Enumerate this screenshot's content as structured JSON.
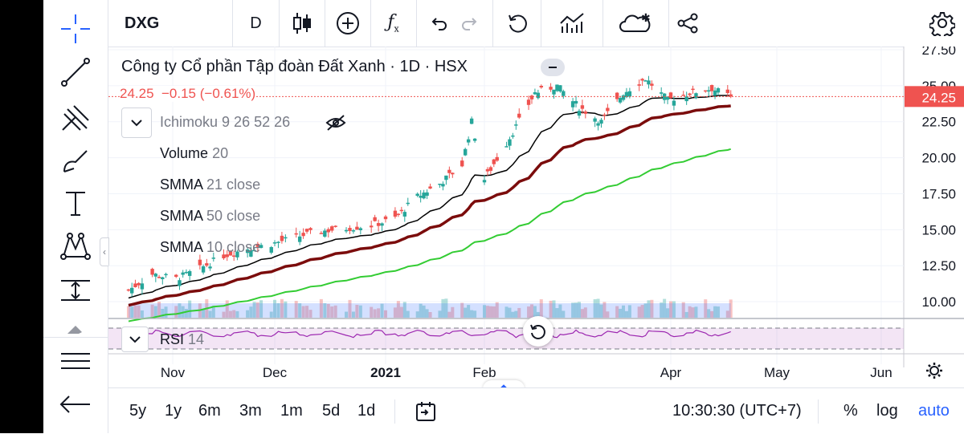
{
  "toolbar": {
    "symbol": "DXG",
    "interval": "D",
    "icons": [
      "candles-icon",
      "add-indicator-icon",
      "fx-icon",
      "undo-icon",
      "redo-icon",
      "replay-icon",
      "compare-icon",
      "alert-cloud-icon",
      "share-icon",
      "settings-icon"
    ]
  },
  "legend": {
    "title": "Công ty Cổ phần Tập đoàn Đất Xanh · 1D · HSX",
    "price": "24.25",
    "change": "−0.15 (−0.61%)",
    "indicators": [
      {
        "name": "Ichimoku",
        "params": "9 26 52 26"
      },
      {
        "name": "Volume",
        "params": "20"
      },
      {
        "name": "SMMA",
        "params": "21 close"
      },
      {
        "name": "SMMA",
        "params": "50 close"
      },
      {
        "name": "SMMA",
        "params": "10 close"
      }
    ],
    "rsi": {
      "name": "RSI",
      "params": "14"
    }
  },
  "time_axis": [
    "Nov",
    "Dec",
    "2021",
    "Feb",
    "Apr",
    "May",
    "Jun"
  ],
  "ranges": [
    "5y",
    "1y",
    "6m",
    "3m",
    "1m",
    "5d",
    "1d"
  ],
  "clock": "10:30:30 (UTC+7)",
  "scale_options": {
    "percent": "%",
    "log": "log",
    "auto": "auto"
  },
  "colors": {
    "up": "#26a69a",
    "down": "#ef5350",
    "smma10": "#000000",
    "smma21": "#7b0c0c",
    "smma50": "#33cc33",
    "price_label": "#ef5350",
    "rsi_line": "#9c27b0",
    "auto": "#2962ff"
  },
  "chart_data": {
    "type": "candlestick",
    "title": "Công ty Cổ phần Tập đoàn Đất Xanh · 1D · HSX",
    "ylim": [
      9,
      27.5
    ],
    "y_ticks": [
      10.0,
      12.5,
      15.0,
      17.5,
      20.0,
      22.5,
      25.0,
      27.5
    ],
    "y_tick_labels": [
      "10.00",
      "12.50",
      "15.00",
      "17.50",
      "20.00",
      "22.50",
      "25.00",
      "27.50"
    ],
    "last_price": 24.25,
    "x_labels": [
      "Nov",
      "Dec",
      "2021",
      "Feb",
      "Apr",
      "May",
      "Jun"
    ],
    "close_anchors": [
      {
        "x": "Oct 19",
        "y": 10.8
      },
      {
        "x": "Oct 26",
        "y": 11.9
      },
      {
        "x": "Nov 2",
        "y": 11.6
      },
      {
        "x": "Nov 9",
        "y": 12.3
      },
      {
        "x": "Nov 16",
        "y": 13.2
      },
      {
        "x": "Nov 23",
        "y": 13.7
      },
      {
        "x": "Nov 30",
        "y": 14.0
      },
      {
        "x": "Dec 7",
        "y": 14.5
      },
      {
        "x": "Dec 14",
        "y": 14.9
      },
      {
        "x": "Dec 21",
        "y": 15.1
      },
      {
        "x": "Dec 28",
        "y": 15.3
      },
      {
        "x": "Jan 4",
        "y": 15.8
      },
      {
        "x": "Jan 11",
        "y": 17.3
      },
      {
        "x": "Jan 18",
        "y": 18.2
      },
      {
        "x": "Jan 25",
        "y": 19.5
      },
      {
        "x": "Jan 28",
        "y": 22.5
      },
      {
        "x": "Feb 1",
        "y": 18.5
      },
      {
        "x": "Feb 8",
        "y": 21.0
      },
      {
        "x": "Feb 17",
        "y": 24.5
      },
      {
        "x": "Feb 24",
        "y": 25.0
      },
      {
        "x": "Mar 3",
        "y": 23.5
      },
      {
        "x": "Mar 10",
        "y": 22.5
      },
      {
        "x": "Mar 17",
        "y": 24.5
      },
      {
        "x": "Mar 24",
        "y": 25.5
      },
      {
        "x": "Mar 31",
        "y": 24.0
      },
      {
        "x": "Apr 7",
        "y": 24.5
      },
      {
        "x": "Apr 14",
        "y": 24.8
      },
      {
        "x": "Apr 20",
        "y": 24.25
      }
    ],
    "smma10_end": 24.3,
    "smma21_end": 23.6,
    "smma50_end": 20.6
  }
}
